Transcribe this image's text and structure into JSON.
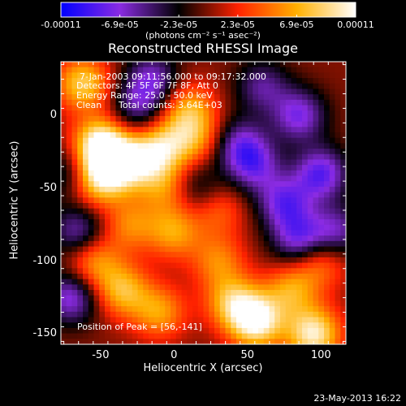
{
  "chart_data": {
    "type": "heatmap",
    "title": "Reconstructed RHESSI Image",
    "xlabel": "Heliocentric X (arcsec)",
    "ylabel": "Heliocentric Y (arcsec)",
    "xlim": [
      -77,
      117
    ],
    "ylim": [
      -157,
      37
    ],
    "x_ticks": [
      "-50",
      "0",
      "50",
      "100"
    ],
    "y_ticks": [
      "0",
      "-50",
      "-100",
      "-150"
    ],
    "colorbar": {
      "range": [
        -0.00011,
        0.00011
      ],
      "tick_labels": [
        "-0.00011",
        "-6.9e-05",
        "-2.3e-05",
        "2.3e-05",
        "6.9e-05",
        "0.00011"
      ],
      "unit": "(photons cm⁻² s⁻¹ asec⁻²)",
      "colormap": [
        "#0000ff",
        "#8a2be2",
        "#000000",
        "#ff2200",
        "#ffb000",
        "#ffffff"
      ]
    },
    "annotations": {
      "time_range": "7-Jan-2003 09:11:56.000 to 09:17:32.000",
      "detectors": "Detectors: 4F 5F 6F 7F 8F, Att 0",
      "energy": "Energy Range: 25.0 - 50.0 keV",
      "algorithm": "Clean",
      "total_counts": "Total counts: 3.64E+03",
      "peak": "Position of Peak = [56,-141]"
    },
    "peak": [
      56,
      -141
    ],
    "blobs": [
      {
        "x": -50,
        "y": -20,
        "amp": 0.00011
      },
      {
        "x": -40,
        "y": -35,
        "amp": 9e-05
      },
      {
        "x": -55,
        "y": -45,
        "amp": 7e-05
      },
      {
        "x": -62,
        "y": 22,
        "amp": 8e-05
      },
      {
        "x": -20,
        "y": -30,
        "amp": 7e-05
      },
      {
        "x": -5,
        "y": -20,
        "amp": 6e-05
      },
      {
        "x": 10,
        "y": 5,
        "amp": 6e-05
      },
      {
        "x": 15,
        "y": -15,
        "amp": 5e-05
      },
      {
        "x": -5,
        "y": -50,
        "amp": 5e-05
      },
      {
        "x": 0,
        "y": -80,
        "amp": 6e-05
      },
      {
        "x": -30,
        "y": -75,
        "amp": 5e-05
      },
      {
        "x": -55,
        "y": -100,
        "amp": 6e-05
      },
      {
        "x": -35,
        "y": -120,
        "amp": 7e-05
      },
      {
        "x": -10,
        "y": -135,
        "amp": 6e-05
      },
      {
        "x": 30,
        "y": -100,
        "amp": 5e-05
      },
      {
        "x": 40,
        "y": -128,
        "amp": 7e-05
      },
      {
        "x": 56,
        "y": -141,
        "amp": 0.00011
      },
      {
        "x": 80,
        "y": -120,
        "amp": 6e-05
      },
      {
        "x": 95,
        "y": -150,
        "amp": 0.0001
      },
      {
        "x": 100,
        "y": -100,
        "amp": 5e-05
      },
      {
        "x": 30,
        "y": -65,
        "amp": 4e-05
      },
      {
        "x": 45,
        "y": -20,
        "amp": -6e-05
      },
      {
        "x": 60,
        "y": 20,
        "amp": -5e-05
      },
      {
        "x": 85,
        "y": 0,
        "amp": -7e-05
      },
      {
        "x": 100,
        "y": -40,
        "amp": -8e-05
      },
      {
        "x": 75,
        "y": -60,
        "amp": -7e-05
      },
      {
        "x": 55,
        "y": -35,
        "amp": -6e-05
      },
      {
        "x": 85,
        "y": -85,
        "amp": -7e-05
      },
      {
        "x": -15,
        "y": 25,
        "amp": -6e-05
      },
      {
        "x": -25,
        "y": 5,
        "amp": -5e-05
      },
      {
        "x": -70,
        "y": -40,
        "amp": -5e-05
      },
      {
        "x": -65,
        "y": -80,
        "amp": -6e-05
      },
      {
        "x": -70,
        "y": -125,
        "amp": -7e-05
      },
      {
        "x": 110,
        "y": -80,
        "amp": -6e-05
      },
      {
        "x": 15,
        "y": -50,
        "amp": -4e-05
      }
    ]
  },
  "footer": {
    "date": "23-May-2013 16:22"
  }
}
